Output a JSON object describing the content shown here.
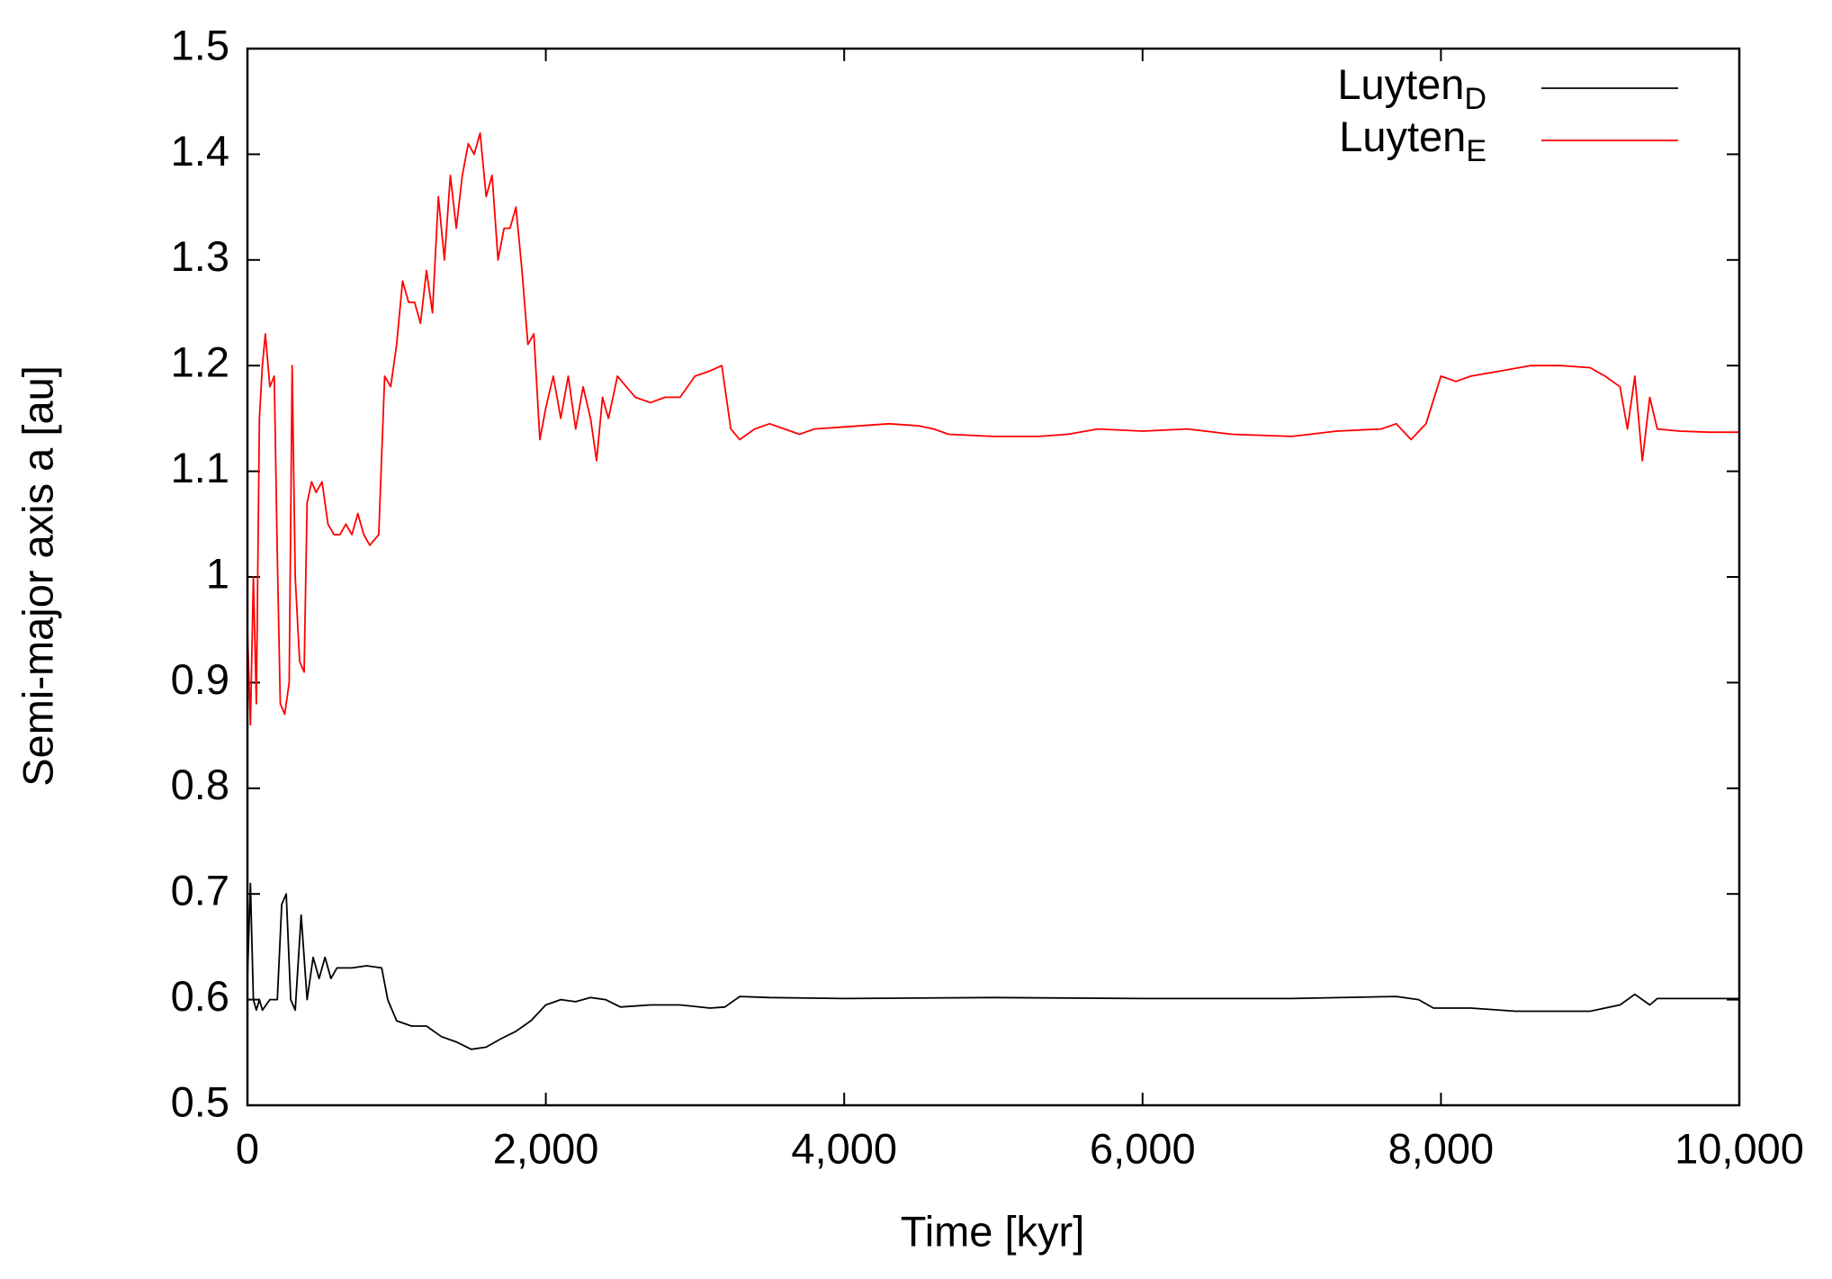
{
  "chart_data": {
    "type": "line",
    "xlabel": "Time [kyr]",
    "ylabel": "Semi-major axis a [au]",
    "xlim": [
      0,
      10000
    ],
    "ylim": [
      0.5,
      1.5
    ],
    "xticks": [
      0,
      {
        "value": 2000,
        "label": "2,000"
      },
      {
        "value": 4000,
        "label": "4,000"
      },
      {
        "value": 6000,
        "label": "6,000"
      },
      {
        "value": 8000,
        "label": "8,000"
      },
      {
        "value": 10000,
        "label": "10,000"
      }
    ],
    "yticks": [
      0.5,
      0.6,
      0.7,
      0.8,
      0.9,
      1,
      1.1,
      1.2,
      1.3,
      1.4,
      1.5
    ],
    "legend": "top-right",
    "series": [
      {
        "name": "Luyten",
        "name_sub": "D",
        "color": "#000000",
        "x": [
          0,
          20,
          40,
          60,
          80,
          100,
          150,
          200,
          230,
          260,
          290,
          320,
          360,
          400,
          440,
          480,
          520,
          560,
          600,
          700,
          800,
          900,
          940,
          1000,
          1100,
          1200,
          1300,
          1400,
          1500,
          1600,
          1700,
          1800,
          1900,
          2000,
          2100,
          2200,
          2300,
          2400,
          2500,
          2700,
          2900,
          3100,
          3200,
          3300,
          3500,
          4000,
          5000,
          6000,
          7000,
          7700,
          7850,
          7950,
          8200,
          8500,
          9000,
          9200,
          9300,
          9400,
          9450,
          10000
        ],
        "values": [
          0.62,
          0.71,
          0.6,
          0.59,
          0.6,
          0.59,
          0.6,
          0.6,
          0.69,
          0.7,
          0.6,
          0.59,
          0.68,
          0.6,
          0.64,
          0.62,
          0.64,
          0.62,
          0.63,
          0.63,
          0.632,
          0.63,
          0.6,
          0.58,
          0.575,
          0.575,
          0.565,
          0.56,
          0.553,
          0.555,
          0.563,
          0.57,
          0.58,
          0.595,
          0.6,
          0.598,
          0.602,
          0.6,
          0.593,
          0.595,
          0.595,
          0.592,
          0.593,
          0.603,
          0.602,
          0.601,
          0.602,
          0.601,
          0.601,
          0.603,
          0.6,
          0.592,
          0.592,
          0.589,
          0.589,
          0.595,
          0.605,
          0.595,
          0.601,
          0.601
        ]
      },
      {
        "name": "Luyten",
        "name_sub": "E",
        "color": "#ff0000",
        "x": [
          0,
          20,
          40,
          60,
          80,
          100,
          120,
          150,
          180,
          200,
          220,
          250,
          280,
          300,
          320,
          350,
          380,
          400,
          430,
          460,
          500,
          540,
          580,
          620,
          660,
          700,
          740,
          780,
          820,
          880,
          920,
          960,
          1000,
          1040,
          1080,
          1120,
          1160,
          1200,
          1240,
          1280,
          1320,
          1360,
          1400,
          1440,
          1480,
          1520,
          1560,
          1600,
          1640,
          1680,
          1720,
          1760,
          1800,
          1840,
          1880,
          1920,
          1960,
          2000,
          2050,
          2100,
          2150,
          2200,
          2250,
          2300,
          2340,
          2380,
          2420,
          2480,
          2540,
          2600,
          2700,
          2800,
          2900,
          3000,
          3100,
          3180,
          3240,
          3300,
          3400,
          3500,
          3600,
          3700,
          3800,
          4000,
          4300,
          4500,
          4600,
          4700,
          5000,
          5300,
          5500,
          5700,
          6000,
          6300,
          6600,
          7000,
          7300,
          7600,
          7700,
          7800,
          7900,
          8000,
          8100,
          8200,
          8400,
          8600,
          8800,
          9000,
          9100,
          9200,
          9250,
          9300,
          9350,
          9400,
          9450,
          9600,
          9800,
          10000
        ],
        "values": [
          0.95,
          0.86,
          1.0,
          0.88,
          1.15,
          1.2,
          1.23,
          1.18,
          1.19,
          1.02,
          0.88,
          0.87,
          0.9,
          1.2,
          1.0,
          0.92,
          0.91,
          1.07,
          1.09,
          1.08,
          1.09,
          1.05,
          1.04,
          1.04,
          1.05,
          1.04,
          1.06,
          1.04,
          1.03,
          1.04,
          1.19,
          1.18,
          1.22,
          1.28,
          1.26,
          1.26,
          1.24,
          1.29,
          1.25,
          1.36,
          1.3,
          1.38,
          1.33,
          1.38,
          1.41,
          1.4,
          1.42,
          1.36,
          1.38,
          1.3,
          1.33,
          1.33,
          1.35,
          1.29,
          1.22,
          1.23,
          1.13,
          1.16,
          1.19,
          1.15,
          1.19,
          1.14,
          1.18,
          1.15,
          1.11,
          1.17,
          1.15,
          1.19,
          1.18,
          1.17,
          1.165,
          1.17,
          1.17,
          1.19,
          1.195,
          1.2,
          1.14,
          1.13,
          1.14,
          1.145,
          1.14,
          1.135,
          1.14,
          1.142,
          1.145,
          1.143,
          1.14,
          1.135,
          1.133,
          1.133,
          1.135,
          1.14,
          1.138,
          1.14,
          1.135,
          1.133,
          1.138,
          1.14,
          1.145,
          1.13,
          1.145,
          1.19,
          1.185,
          1.19,
          1.195,
          1.2,
          1.2,
          1.198,
          1.19,
          1.18,
          1.14,
          1.19,
          1.11,
          1.17,
          1.14,
          1.138,
          1.137,
          1.137
        ]
      }
    ]
  }
}
